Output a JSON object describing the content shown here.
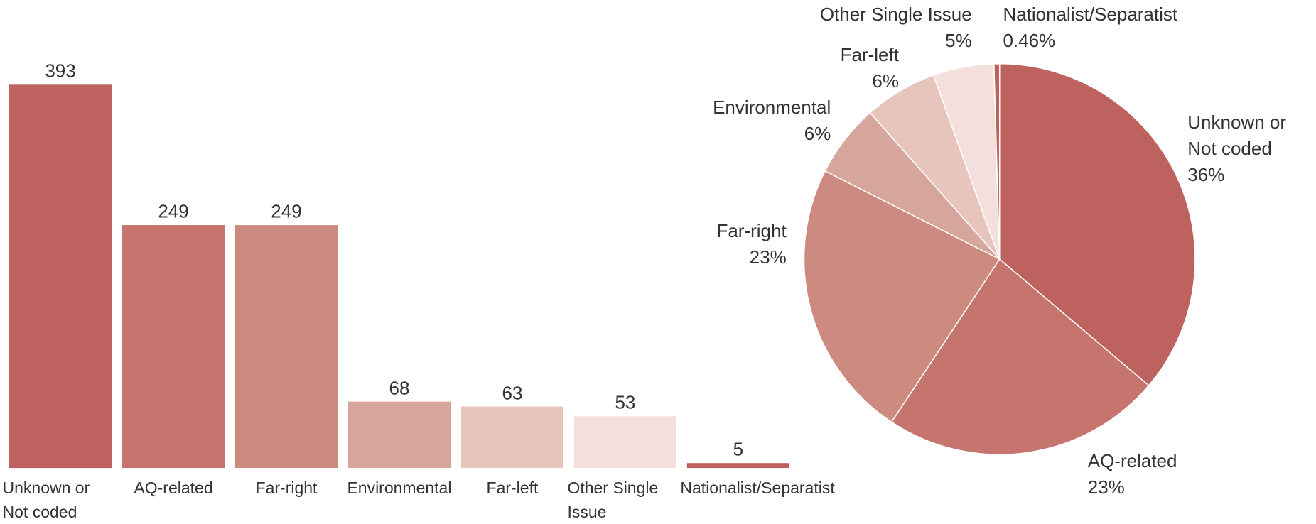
{
  "chart_data": [
    {
      "type": "bar",
      "categories": [
        "Unknown or Not coded",
        "AQ-related",
        "Far-right",
        "Environmental",
        "Far-left",
        "Other Single Issue",
        "Nationalist/Separatist"
      ],
      "values": [
        393,
        249,
        249,
        68,
        63,
        53,
        5
      ],
      "colors": [
        "#bd625e",
        "#c5746e",
        "#cc8a80",
        "#d6a59c",
        "#e7c5bd",
        "#f3dfdc",
        "#c0605c"
      ]
    },
    {
      "type": "pie",
      "categories": [
        "Unknown or Not coded",
        "AQ-related",
        "Far-right",
        "Environmental",
        "Far-left",
        "Other Single Issue",
        "Nationalist/Separatist"
      ],
      "values": [
        36,
        23,
        23,
        6,
        6,
        5,
        0.46
      ],
      "value_labels": [
        "36%",
        "23%",
        "23%",
        "6%",
        "6%",
        "5%",
        "0.46%"
      ],
      "colors": [
        "#bd625e",
        "#c5746e",
        "#cc8a80",
        "#d6a59c",
        "#e7c5bd",
        "#f3dfdc",
        "#c0605c"
      ]
    }
  ]
}
